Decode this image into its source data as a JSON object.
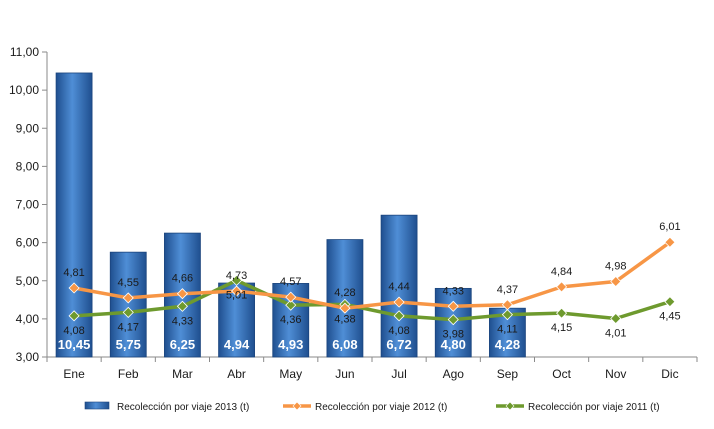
{
  "chart_data": {
    "type": "bar",
    "categories": [
      "Ene",
      "Feb",
      "Mar",
      "Abr",
      "May",
      "Jun",
      "Jul",
      "Ago",
      "Sep",
      "Oct",
      "Nov",
      "Dic"
    ],
    "ylim": [
      3.0,
      11.0
    ],
    "yticks": [
      "3,00",
      "4,00",
      "5,00",
      "6,00",
      "7,00",
      "8,00",
      "9,00",
      "10,00",
      "11,00"
    ],
    "series": [
      {
        "name": "Recolección por viaje 2013 (t)",
        "kind": "bar",
        "color": "#2e6db8",
        "values": [
          10.45,
          5.75,
          6.25,
          4.94,
          4.93,
          6.08,
          6.72,
          4.8,
          4.28,
          null,
          null,
          null
        ],
        "labels": [
          "10,45",
          "5,75",
          "6,25",
          "4,94",
          "4,93",
          "6,08",
          "6,72",
          "4,80",
          "4,28",
          "",
          "",
          ""
        ]
      },
      {
        "name": "Recolección por viaje 2012 (t)",
        "kind": "line",
        "color": "#f79646",
        "values": [
          4.81,
          4.55,
          4.66,
          4.73,
          4.57,
          4.28,
          4.44,
          4.33,
          4.37,
          4.84,
          4.98,
          6.01
        ],
        "labels": [
          "4,81",
          "4,55",
          "4,66",
          "4,73",
          "4,57",
          "4,28",
          "4,44",
          "4,33",
          "4,37",
          "4,84",
          "4,98",
          "6,01"
        ]
      },
      {
        "name": "Recolección por viaje 2011 (t)",
        "kind": "line",
        "color": "#6e9a2e",
        "values": [
          4.08,
          4.17,
          4.33,
          5.01,
          4.36,
          4.38,
          4.08,
          3.98,
          4.11,
          4.15,
          4.01,
          4.45
        ],
        "labels": [
          "4,08",
          "4,17",
          "4,33",
          "5,01",
          "4,36",
          "4,38",
          "4,08",
          "3,98",
          "4,11",
          "4,15",
          "4,01",
          "4,45"
        ]
      }
    ],
    "legend_position": "bottom",
    "grid": false
  }
}
